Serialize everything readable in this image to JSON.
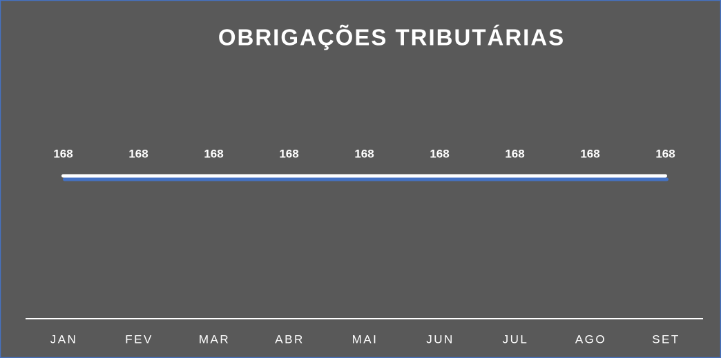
{
  "chart_data": {
    "type": "line",
    "title": "OBRIGAÇÕES TRIBUTÁRIAS",
    "categories": [
      "JAN",
      "FEV",
      "MAR",
      "ABR",
      "MAI",
      "JUN",
      "JUL",
      "AGO",
      "SET"
    ],
    "values": [
      168,
      168,
      168,
      168,
      168,
      168,
      168,
      168,
      168
    ],
    "color": "#ffffff",
    "ylim": [
      0,
      200
    ]
  }
}
